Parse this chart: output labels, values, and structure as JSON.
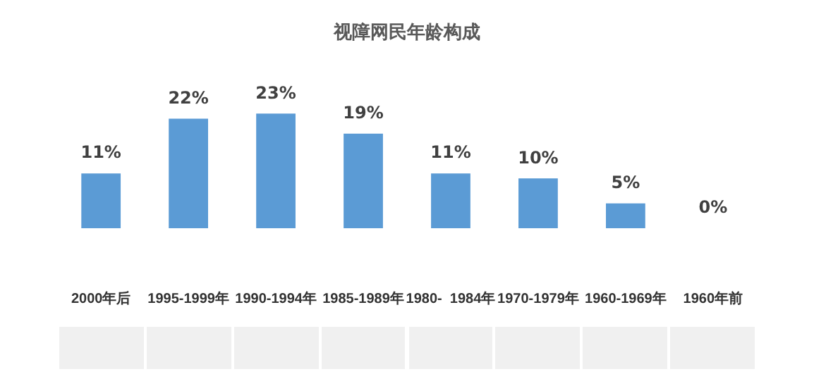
{
  "chart_data": {
    "type": "bar",
    "title": "视障网民年龄构成",
    "categories": [
      "2000年后",
      "1995-1999年",
      "1990-1994年",
      "1985-1989年",
      "1980-  1984年",
      "1970-1979年",
      "1960-1969年",
      "1960年前"
    ],
    "values": [
      11,
      22,
      23,
      19,
      11,
      10,
      5,
      0
    ],
    "value_labels": [
      "11%",
      "22%",
      "23%",
      "19%",
      "11%",
      "10%",
      "5%",
      "0%"
    ],
    "color": "#5b9bd5",
    "grid": false,
    "legend": false
  }
}
